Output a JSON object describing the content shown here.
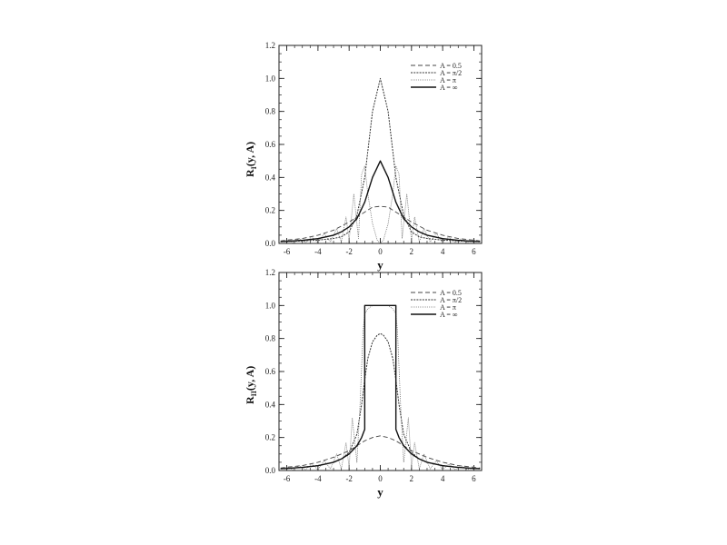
{
  "chart_data": [
    {
      "type": "line",
      "ylabel_main": "R",
      "ylabel_sub": "I",
      "ylabel_rest": "(y, A)",
      "xlabel": "y",
      "xlim": [
        -6.5,
        6.5
      ],
      "ylim": [
        0,
        1.2
      ],
      "xticks": [
        "-6",
        "-4",
        "-2",
        "0",
        "2",
        "4",
        "6"
      ],
      "yticks": [
        "0.0",
        "0.2",
        "0.4",
        "0.6",
        "0.8",
        "1.0",
        "1.2"
      ],
      "legend_position": "top-right",
      "series": [
        {
          "name": "A = 0.5",
          "style": "dashed",
          "x": [
            -6.4,
            -6,
            -5,
            -4,
            -3,
            -2,
            -1.5,
            -1,
            -0.5,
            0,
            0.5,
            1,
            1.5,
            2,
            3,
            4,
            5,
            6,
            6.4
          ],
          "y": [
            0.015,
            0.02,
            0.03,
            0.05,
            0.08,
            0.13,
            0.16,
            0.19,
            0.22,
            0.225,
            0.22,
            0.19,
            0.16,
            0.13,
            0.08,
            0.05,
            0.03,
            0.02,
            0.015
          ]
        },
        {
          "name": "A = π/2",
          "style": "dense-dotted",
          "x": [
            -6.4,
            -6,
            -5,
            -4,
            -3,
            -2.5,
            -2,
            -1.5,
            -1,
            -0.5,
            0,
            0.5,
            1,
            1.5,
            2,
            2.5,
            3,
            4,
            5,
            6,
            6.4
          ],
          "y": [
            0.01,
            0.012,
            0.015,
            0.02,
            0.03,
            0.04,
            0.07,
            0.17,
            0.4,
            0.8,
            1.0,
            0.8,
            0.4,
            0.17,
            0.07,
            0.04,
            0.03,
            0.02,
            0.015,
            0.012,
            0.01
          ]
        },
        {
          "name": "A = π",
          "style": "fine-dotted",
          "x": [
            -6.4,
            -6,
            -5.6,
            -5.2,
            -4.8,
            -4.4,
            -4,
            -3.6,
            -3.2,
            -2.8,
            -2.5,
            -2.2,
            -2,
            -1.7,
            -1.4,
            -1.2,
            -1,
            -0.8,
            -0.5,
            -0.2,
            0,
            0.2,
            0.5,
            0.8,
            1,
            1.2,
            1.4,
            1.7,
            2,
            2.2,
            2.5,
            2.8,
            3.2,
            3.6,
            4,
            4.4,
            4.8,
            5.2,
            5.6,
            6,
            6.4
          ],
          "y": [
            0.01,
            0.02,
            0.005,
            0.03,
            0.005,
            0.04,
            0.005,
            0.06,
            0.01,
            0.09,
            0.01,
            0.16,
            0.02,
            0.3,
            0.03,
            0.42,
            0.47,
            0.3,
            0.12,
            0.02,
            0.0,
            0.02,
            0.12,
            0.3,
            0.47,
            0.42,
            0.03,
            0.3,
            0.02,
            0.16,
            0.01,
            0.09,
            0.01,
            0.06,
            0.005,
            0.04,
            0.005,
            0.03,
            0.005,
            0.02,
            0.01
          ]
        },
        {
          "name": "A = ∞",
          "style": "solid",
          "x": [
            -6.4,
            -6,
            -5,
            -4,
            -3,
            -2.5,
            -2,
            -1.5,
            -1,
            -0.5,
            0,
            0.5,
            1,
            1.5,
            2,
            2.5,
            3,
            4,
            5,
            6,
            6.4
          ],
          "y": [
            0.012,
            0.013,
            0.019,
            0.029,
            0.05,
            0.07,
            0.1,
            0.15,
            0.25,
            0.4,
            0.5,
            0.4,
            0.25,
            0.15,
            0.1,
            0.07,
            0.05,
            0.029,
            0.019,
            0.013,
            0.012
          ]
        }
      ]
    },
    {
      "type": "line",
      "ylabel_main": "R",
      "ylabel_sub": "II",
      "ylabel_rest": "(y, A)",
      "xlabel": "y",
      "xlim": [
        -6.5,
        6.5
      ],
      "ylim": [
        0,
        1.2
      ],
      "xticks": [
        "-6",
        "-4",
        "-2",
        "0",
        "2",
        "4",
        "6"
      ],
      "yticks": [
        "0.0",
        "0.2",
        "0.4",
        "0.6",
        "0.8",
        "1.0",
        "1.2"
      ],
      "legend_position": "top-right",
      "series": [
        {
          "name": "A = 0.5",
          "style": "dashed",
          "x": [
            -6.4,
            -6,
            -5,
            -4,
            -3,
            -2,
            -1.5,
            -1,
            -0.5,
            0,
            0.5,
            1,
            1.5,
            2,
            3,
            4,
            5,
            6,
            6.4
          ],
          "y": [
            0.015,
            0.02,
            0.03,
            0.05,
            0.08,
            0.12,
            0.15,
            0.18,
            0.2,
            0.21,
            0.2,
            0.18,
            0.15,
            0.12,
            0.08,
            0.05,
            0.03,
            0.02,
            0.015
          ]
        },
        {
          "name": "A = π/2",
          "style": "dense-dotted",
          "x": [
            -6.4,
            -6,
            -5,
            -4,
            -3,
            -2.5,
            -2,
            -1.5,
            -1.2,
            -1,
            -0.8,
            -0.5,
            -0.2,
            0,
            0.2,
            0.5,
            0.8,
            1,
            1.2,
            1.5,
            2,
            2.5,
            3,
            4,
            5,
            6,
            6.4
          ],
          "y": [
            0.01,
            0.012,
            0.02,
            0.03,
            0.05,
            0.07,
            0.11,
            0.22,
            0.4,
            0.55,
            0.68,
            0.78,
            0.82,
            0.83,
            0.82,
            0.78,
            0.68,
            0.55,
            0.4,
            0.22,
            0.11,
            0.07,
            0.05,
            0.03,
            0.02,
            0.012,
            0.01
          ]
        },
        {
          "name": "A = π",
          "style": "fine-dotted",
          "x": [
            -6.4,
            -6,
            -5.6,
            -5.2,
            -4.8,
            -4.4,
            -4,
            -3.6,
            -3.2,
            -2.8,
            -2.5,
            -2.2,
            -2,
            -1.8,
            -1.5,
            -1.3,
            -1.1,
            -1,
            -0.8,
            -0.5,
            0,
            0.5,
            0.8,
            1,
            1.1,
            1.3,
            1.5,
            1.8,
            2,
            2.2,
            2.5,
            2.8,
            3.2,
            3.6,
            4,
            4.4,
            4.8,
            5.2,
            5.6,
            6,
            6.4
          ],
          "y": [
            0.01,
            0.02,
            0.005,
            0.03,
            0.005,
            0.04,
            0.005,
            0.06,
            0.01,
            0.1,
            0.01,
            0.17,
            0.02,
            0.32,
            0.05,
            0.4,
            0.85,
            0.95,
            0.98,
            1.0,
            1.0,
            1.0,
            0.98,
            0.95,
            0.85,
            0.4,
            0.05,
            0.32,
            0.02,
            0.17,
            0.01,
            0.1,
            0.01,
            0.06,
            0.005,
            0.04,
            0.005,
            0.03,
            0.005,
            0.02,
            0.01
          ]
        },
        {
          "name": "A = ∞",
          "style": "solid",
          "x": [
            -6.4,
            -6,
            -5,
            -4,
            -3,
            -2.5,
            -2,
            -1.5,
            -1.2,
            -1,
            -1,
            -0.5,
            0,
            0.5,
            1,
            1,
            1.2,
            1.5,
            2,
            2.5,
            3,
            4,
            5,
            6,
            6.4
          ],
          "y": [
            0.012,
            0.013,
            0.019,
            0.029,
            0.05,
            0.07,
            0.1,
            0.15,
            0.2,
            0.25,
            1.0,
            1.0,
            1.0,
            1.0,
            1.0,
            0.25,
            0.2,
            0.15,
            0.1,
            0.07,
            0.05,
            0.029,
            0.019,
            0.013,
            0.012
          ]
        }
      ]
    }
  ]
}
